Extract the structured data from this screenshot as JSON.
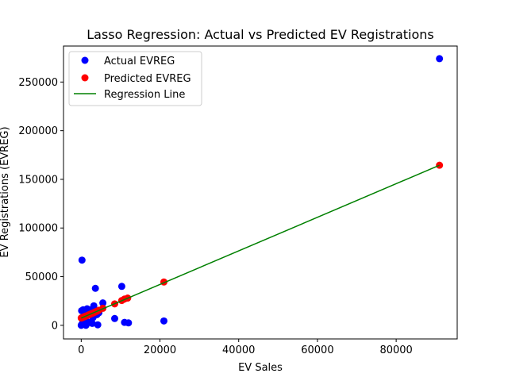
{
  "chart_data": {
    "type": "scatter",
    "title": "Lasso Regression: Actual vs Predicted EV Registrations",
    "xlabel": "EV Sales",
    "ylabel": "EV Registrations (EVREG)",
    "xlim": [
      -4500,
      95500
    ],
    "ylim": [
      -14000,
      287000
    ],
    "x_ticks": [
      0,
      20000,
      40000,
      60000,
      80000
    ],
    "x_tick_labels": [
      "0",
      "20000",
      "40000",
      "60000",
      "80000"
    ],
    "y_ticks": [
      0,
      50000,
      100000,
      150000,
      200000,
      250000
    ],
    "y_tick_labels": [
      "0",
      "50000",
      "100000",
      "150000",
      "200000",
      "250000"
    ],
    "grid": false,
    "legend_position": "top-left",
    "series": [
      {
        "name": "Actual EVREG",
        "kind": "scatter",
        "color": "#0000ff",
        "points": [
          [
            91000,
            274000
          ],
          [
            21000,
            4500
          ],
          [
            11000,
            3000
          ],
          [
            12000,
            2500
          ],
          [
            10300,
            40000
          ],
          [
            8500,
            7000
          ],
          [
            4200,
            500
          ],
          [
            3600,
            38000
          ],
          [
            200,
            67000
          ],
          [
            5500,
            23000
          ],
          [
            3200,
            20000
          ],
          [
            4500,
            13000
          ],
          [
            2500,
            16000
          ],
          [
            2000,
            3000
          ],
          [
            1500,
            17000
          ],
          [
            1000,
            10000
          ],
          [
            500,
            16000
          ],
          [
            100,
            15000
          ],
          [
            800,
            6000
          ],
          [
            300,
            2000
          ],
          [
            0,
            0
          ],
          [
            1200,
            0
          ],
          [
            1800,
            3000
          ],
          [
            2800,
            2000
          ],
          [
            600,
            4000
          ],
          [
            2200,
            12000
          ],
          [
            3000,
            8000
          ],
          [
            4000,
            11000
          ],
          [
            1600,
            14000
          ],
          [
            100,
            500
          ]
        ]
      },
      {
        "name": "Predicted EVREG",
        "kind": "scatter",
        "color": "#ff0000",
        "points": [
          [
            91000,
            164500
          ],
          [
            21000,
            44500
          ],
          [
            11800,
            28000
          ],
          [
            11000,
            27000
          ],
          [
            10300,
            25500
          ],
          [
            8500,
            22000
          ],
          [
            5500,
            17500
          ],
          [
            4500,
            15500
          ],
          [
            4000,
            14500
          ],
          [
            3600,
            13800
          ],
          [
            3200,
            13000
          ],
          [
            2800,
            12300
          ],
          [
            2500,
            11800
          ],
          [
            2200,
            11200
          ],
          [
            2000,
            10900
          ],
          [
            1800,
            10500
          ],
          [
            1500,
            10000
          ],
          [
            1200,
            9500
          ],
          [
            1000,
            9200
          ],
          [
            800,
            8800
          ],
          [
            600,
            8500
          ],
          [
            300,
            8000
          ],
          [
            100,
            7700
          ],
          [
            0,
            7500
          ]
        ]
      },
      {
        "name": "Regression Line",
        "kind": "line",
        "color": "#008000",
        "points": [
          [
            0,
            7500
          ],
          [
            91000,
            164500
          ]
        ]
      }
    ]
  }
}
